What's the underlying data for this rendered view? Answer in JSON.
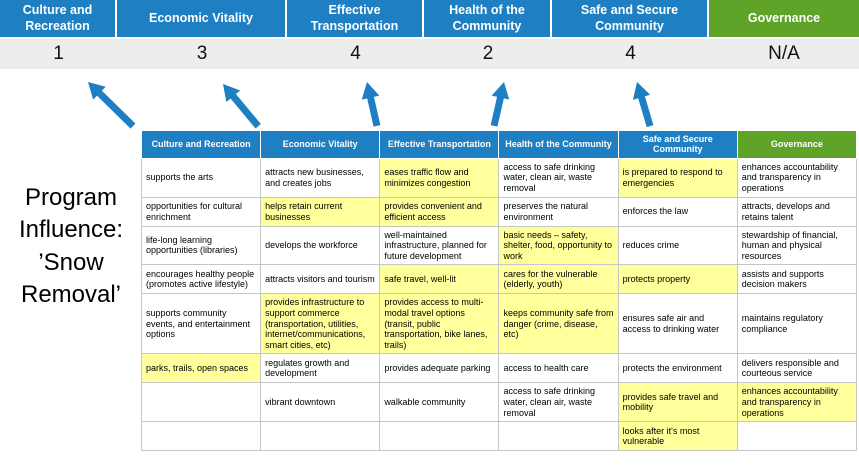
{
  "program": {
    "label": "Program Influence: ’Snow Removal’"
  },
  "colors": {
    "header_blue": "#1E7FC2",
    "header_green": "#5FA428",
    "highlight": "#FFFF9B",
    "score_band": "#EDEDED",
    "arrow": "#1E7FC2"
  },
  "summary": {
    "columns": [
      {
        "label": "Culture and Recreation",
        "score": "1"
      },
      {
        "label": "Economic Vitality",
        "score": "3"
      },
      {
        "label": "Effective Transportation",
        "score": "4"
      },
      {
        "label": "Health of the Community",
        "score": "2"
      },
      {
        "label": "Safe and Secure Community",
        "score": "4"
      },
      {
        "label": "Governance",
        "score": "N/A"
      }
    ]
  },
  "matrix": {
    "headers": [
      "Culture and Recreation",
      "Economic Vitality",
      "Effective Transportation",
      "Health of the Community",
      "Safe and Secure Community",
      "Governance"
    ],
    "rows": [
      {
        "cells": [
          {
            "text": "supports the arts",
            "highlight": false
          },
          {
            "text": "attracts new businesses, and creates jobs",
            "highlight": false
          },
          {
            "text": "eases traffic flow and minimizes congestion",
            "highlight": true
          },
          {
            "text": "access to safe drinking water, clean air, waste removal",
            "highlight": false
          },
          {
            "text": "is prepared to respond to emergencies",
            "highlight": true
          },
          {
            "text": "enhances accountability and transparency in operations",
            "highlight": false
          }
        ]
      },
      {
        "cells": [
          {
            "text": "opportunities for cultural enrichment",
            "highlight": false
          },
          {
            "text": "helps retain current businesses",
            "highlight": true
          },
          {
            "text": "provides convenient and efficient access",
            "highlight": true
          },
          {
            "text": "preserves the natural environment",
            "highlight": false
          },
          {
            "text": "enforces the law",
            "highlight": false
          },
          {
            "text": "attracts, develops and retains talent",
            "highlight": false
          }
        ]
      },
      {
        "cells": [
          {
            "text": "life-long learning opportunities (libraries)",
            "highlight": false
          },
          {
            "text": "develops the workforce",
            "highlight": false
          },
          {
            "text": "well-maintained infrastructure, planned for future development",
            "highlight": false
          },
          {
            "text": "basic needs – safety, shelter, food, opportunity to work",
            "highlight": true
          },
          {
            "text": "reduces crime",
            "highlight": false
          },
          {
            "text": "stewardship of financial, human and physical resources",
            "highlight": false
          }
        ]
      },
      {
        "cells": [
          {
            "text": "encourages healthy people (promotes active lifestyle)",
            "highlight": false
          },
          {
            "text": "attracts visitors and tourism",
            "highlight": false
          },
          {
            "text": "safe travel, well-lit",
            "highlight": true
          },
          {
            "text": "cares for the vulnerable (elderly, youth)",
            "highlight": true
          },
          {
            "text": "protects property",
            "highlight": true
          },
          {
            "text": "assists and supports decision makers",
            "highlight": false
          }
        ]
      },
      {
        "cells": [
          {
            "text": "supports community events, and entertainment options",
            "highlight": false
          },
          {
            "text": "provides infrastructure to support commerce (transportation, utilities, internet/communications, smart cities, etc)",
            "highlight": true
          },
          {
            "text": "provides access to multi-modal travel options (transit, public transportation, bike lanes, trails)",
            "highlight": true
          },
          {
            "text": "keeps community safe from danger (crime, disease, etc)",
            "highlight": true
          },
          {
            "text": "ensures safe air and access to drinking water",
            "highlight": false
          },
          {
            "text": "maintains regulatory compliance",
            "highlight": false
          }
        ]
      },
      {
        "cells": [
          {
            "text": "parks, trails, open spaces",
            "highlight": true
          },
          {
            "text": "regulates growth and development",
            "highlight": false
          },
          {
            "text": "provides adequate parking",
            "highlight": false
          },
          {
            "text": "access to health care",
            "highlight": false
          },
          {
            "text": "protects the environment",
            "highlight": false
          },
          {
            "text": "delivers responsible and courteous service",
            "highlight": false
          }
        ]
      },
      {
        "cells": [
          {
            "text": "",
            "highlight": false
          },
          {
            "text": "vibrant downtown",
            "highlight": false
          },
          {
            "text": "walkable community",
            "highlight": false
          },
          {
            "text": "access to safe drinking water, clean air, waste removal",
            "highlight": false
          },
          {
            "text": "provides safe travel and mobility",
            "highlight": true
          },
          {
            "text": "enhances accountability and transparency in operations",
            "highlight": true
          }
        ]
      },
      {
        "cells": [
          {
            "text": "",
            "highlight": false
          },
          {
            "text": "",
            "highlight": false
          },
          {
            "text": "",
            "highlight": false
          },
          {
            "text": "",
            "highlight": false
          },
          {
            "text": "looks after it's most vulnerable",
            "highlight": true
          },
          {
            "text": "",
            "highlight": false
          }
        ]
      }
    ]
  }
}
